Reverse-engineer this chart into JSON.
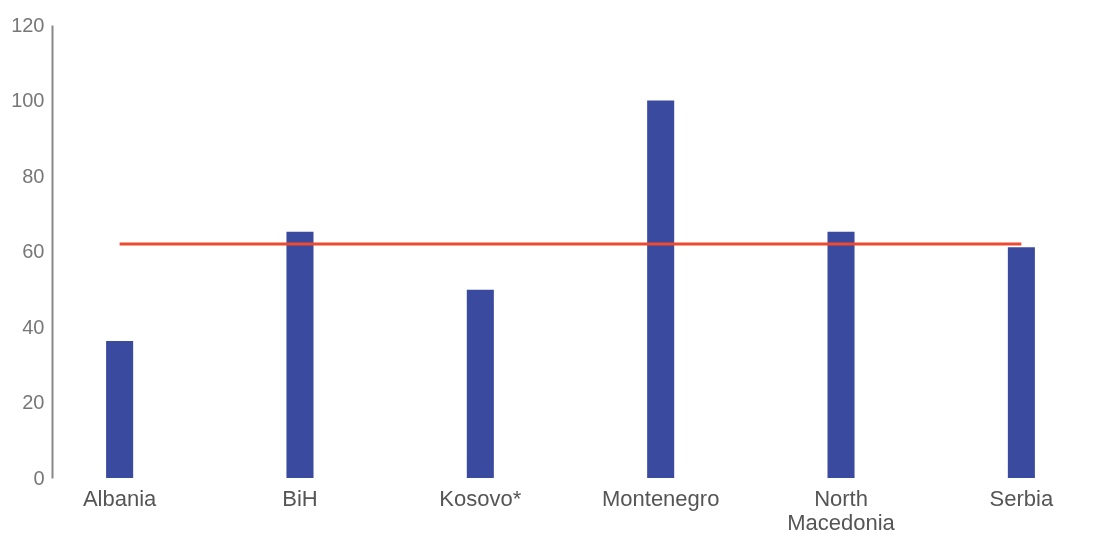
{
  "chart_data": {
    "type": "bar",
    "categories": [
      "Albania",
      "BiH",
      "Kosovo*",
      "Montenegro",
      "North Macedonia",
      "Serbia"
    ],
    "series": [
      {
        "color": "#3a4a9e",
        "values": [
          36.3,
          65.2,
          49.9,
          100,
          65.2,
          61.1
        ]
      },
      {
        "type": "line",
        "color": "#ee4a2f",
        "values": [
          62,
          62,
          62,
          62,
          62,
          62
        ]
      }
    ],
    "ylim": [
      0,
      120
    ],
    "yticks": [
      0,
      20,
      40,
      60,
      80,
      100,
      120
    ],
    "grid": false,
    "legend": false,
    "marker": "none",
    "line_style": "solid"
  }
}
